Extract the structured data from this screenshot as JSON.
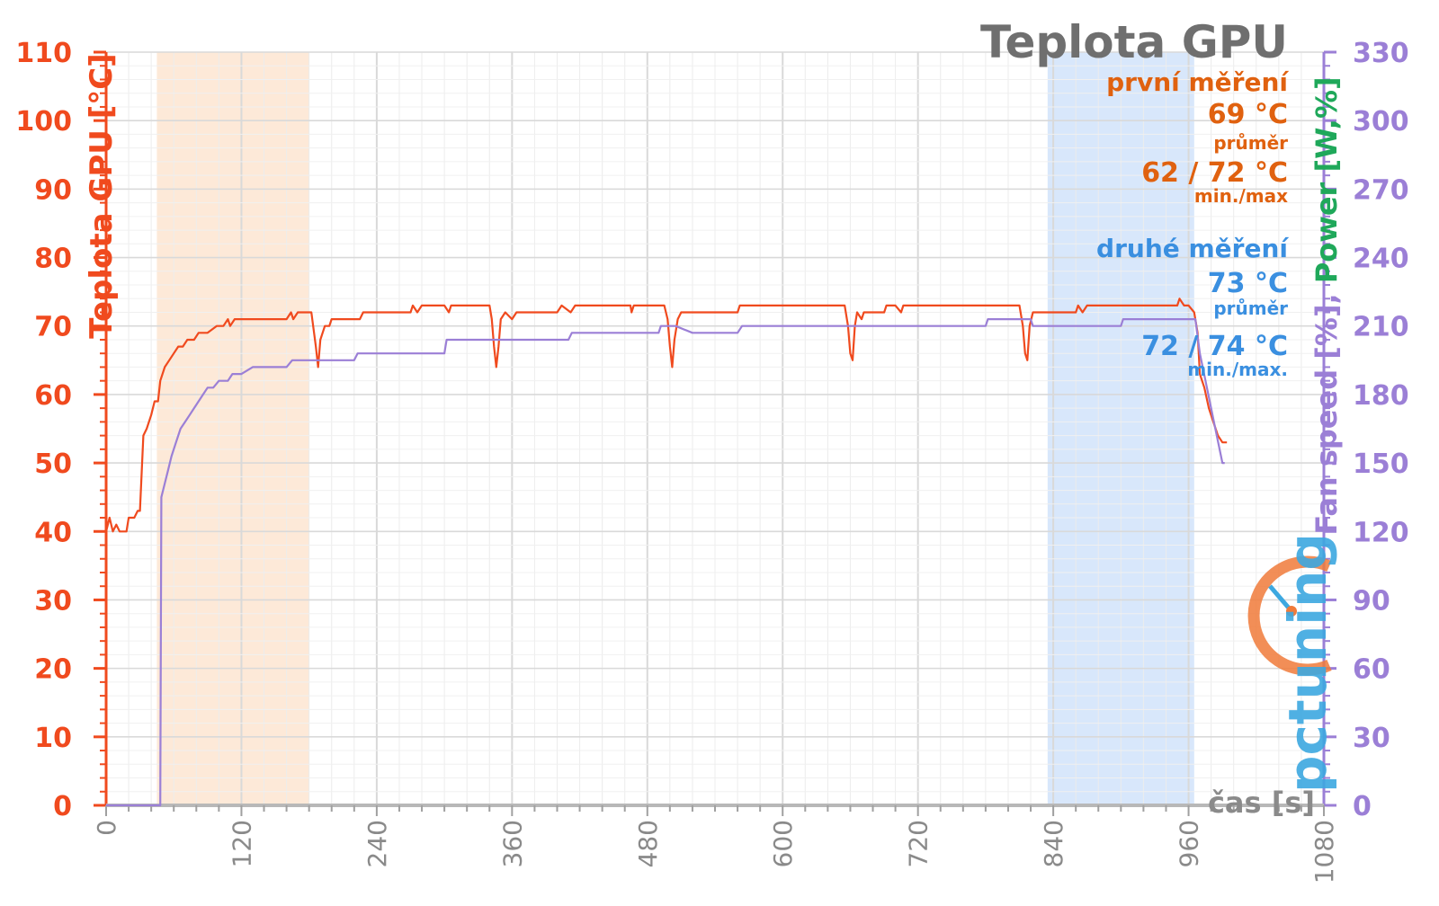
{
  "chart_data": {
    "type": "line",
    "title": "Teplota GPU",
    "xlabel": "čas [s]",
    "ylabel_left": "Teplota GPU [°C]",
    "ylabel_right_parts": [
      {
        "text": "Fan speed [%]",
        "color": "#9b7fd6"
      },
      {
        "text": ", ",
        "color": "#9b7fd6"
      },
      {
        "text": "Power [W,%]",
        "color": "#1fa85a"
      }
    ],
    "xlim": [
      0,
      1080
    ],
    "ylim_left": [
      0,
      110
    ],
    "ylim_right": [
      0,
      330
    ],
    "x_ticks": [
      "0",
      "120",
      "240",
      "360",
      "480",
      "600",
      "720",
      "840",
      "960",
      "1080"
    ],
    "y_ticks_left": [
      "0",
      "10",
      "20",
      "30",
      "40",
      "50",
      "60",
      "70",
      "80",
      "90",
      "100",
      "110"
    ],
    "y_ticks_right": [
      "0",
      "30",
      "60",
      "90",
      "120",
      "150",
      "180",
      "210",
      "240",
      "270",
      "300",
      "330"
    ],
    "grid": true,
    "shaded_regions": [
      {
        "x0": 45,
        "x1": 180,
        "color": "#fde8d6"
      },
      {
        "x0": 835,
        "x1": 965,
        "color": "#d6e6fb"
      }
    ],
    "series": [
      {
        "color": "#f04a1e",
        "axis": "left",
        "points": [
          [
            0,
            40
          ],
          [
            3,
            42
          ],
          [
            6,
            40
          ],
          [
            9,
            41
          ],
          [
            12,
            40
          ],
          [
            18,
            40
          ],
          [
            20,
            42
          ],
          [
            25,
            42
          ],
          [
            28,
            43
          ],
          [
            30,
            43
          ],
          [
            33,
            54
          ],
          [
            36,
            55
          ],
          [
            40,
            57
          ],
          [
            43,
            59
          ],
          [
            46,
            59
          ],
          [
            48,
            62
          ],
          [
            52,
            64
          ],
          [
            56,
            65
          ],
          [
            60,
            66
          ],
          [
            64,
            67
          ],
          [
            68,
            67
          ],
          [
            72,
            68
          ],
          [
            78,
            68
          ],
          [
            82,
            69
          ],
          [
            90,
            69
          ],
          [
            98,
            70
          ],
          [
            104,
            70
          ],
          [
            108,
            71
          ],
          [
            110,
            70
          ],
          [
            114,
            71
          ],
          [
            118,
            71
          ],
          [
            130,
            71
          ],
          [
            160,
            71
          ],
          [
            164,
            72
          ],
          [
            166,
            71
          ],
          [
            170,
            72
          ],
          [
            175,
            72
          ],
          [
            182,
            72
          ],
          [
            186,
            67
          ],
          [
            188,
            64
          ],
          [
            190,
            68
          ],
          [
            194,
            70
          ],
          [
            198,
            70
          ],
          [
            200,
            71
          ],
          [
            205,
            71
          ],
          [
            210,
            71
          ],
          [
            225,
            71
          ],
          [
            228,
            72
          ],
          [
            235,
            72
          ],
          [
            240,
            72
          ],
          [
            270,
            72
          ],
          [
            272,
            73
          ],
          [
            276,
            72
          ],
          [
            280,
            73
          ],
          [
            300,
            73
          ],
          [
            304,
            72
          ],
          [
            306,
            73
          ],
          [
            310,
            73
          ],
          [
            330,
            73
          ],
          [
            340,
            73
          ],
          [
            342,
            71
          ],
          [
            344,
            67
          ],
          [
            346,
            64
          ],
          [
            348,
            67
          ],
          [
            350,
            71
          ],
          [
            354,
            72
          ],
          [
            360,
            71
          ],
          [
            364,
            72
          ],
          [
            380,
            72
          ],
          [
            400,
            72
          ],
          [
            404,
            73
          ],
          [
            412,
            72
          ],
          [
            416,
            73
          ],
          [
            430,
            73
          ],
          [
            450,
            73
          ],
          [
            465,
            73
          ],
          [
            466,
            72
          ],
          [
            468,
            73
          ],
          [
            495,
            73
          ],
          [
            498,
            71
          ],
          [
            500,
            67
          ],
          [
            502,
            64
          ],
          [
            504,
            68
          ],
          [
            507,
            71
          ],
          [
            510,
            72
          ],
          [
            520,
            72
          ],
          [
            540,
            72
          ],
          [
            560,
            72
          ],
          [
            562,
            73
          ],
          [
            575,
            73
          ],
          [
            590,
            73
          ],
          [
            610,
            73
          ],
          [
            655,
            73
          ],
          [
            658,
            70
          ],
          [
            660,
            66
          ],
          [
            662,
            65
          ],
          [
            664,
            70
          ],
          [
            666,
            72
          ],
          [
            670,
            71
          ],
          [
            672,
            72
          ],
          [
            690,
            72
          ],
          [
            692,
            73
          ],
          [
            700,
            73
          ],
          [
            705,
            72
          ],
          [
            707,
            73
          ],
          [
            720,
            73
          ],
          [
            750,
            73
          ],
          [
            770,
            73
          ],
          [
            810,
            73
          ],
          [
            813,
            70
          ],
          [
            815,
            66
          ],
          [
            817,
            65
          ],
          [
            819,
            70
          ],
          [
            822,
            72
          ],
          [
            826,
            72
          ],
          [
            840,
            72
          ],
          [
            860,
            72
          ],
          [
            862,
            73
          ],
          [
            866,
            72
          ],
          [
            870,
            73
          ],
          [
            880,
            73
          ],
          [
            900,
            73
          ],
          [
            940,
            73
          ],
          [
            950,
            73
          ],
          [
            952,
            74
          ],
          [
            956,
            73
          ],
          [
            960,
            73
          ],
          [
            965,
            72
          ],
          [
            968,
            69
          ],
          [
            970,
            63
          ],
          [
            974,
            61
          ],
          [
            978,
            58
          ],
          [
            982,
            56
          ],
          [
            986,
            54
          ],
          [
            990,
            53
          ],
          [
            994,
            53
          ]
        ]
      },
      {
        "color": "#9b7fd6",
        "axis": "left",
        "points": [
          [
            0,
            0
          ],
          [
            48,
            0
          ],
          [
            49,
            45
          ],
          [
            52,
            47
          ],
          [
            55,
            49
          ],
          [
            58,
            51
          ],
          [
            62,
            53
          ],
          [
            66,
            55
          ],
          [
            70,
            56
          ],
          [
            74,
            57
          ],
          [
            78,
            58
          ],
          [
            82,
            59
          ],
          [
            86,
            60
          ],
          [
            90,
            61
          ],
          [
            95,
            61
          ],
          [
            100,
            62
          ],
          [
            108,
            62
          ],
          [
            112,
            63
          ],
          [
            120,
            63
          ],
          [
            130,
            64
          ],
          [
            160,
            64
          ],
          [
            165,
            65
          ],
          [
            180,
            65
          ],
          [
            190,
            65
          ],
          [
            220,
            65
          ],
          [
            223,
            66
          ],
          [
            240,
            66
          ],
          [
            300,
            66
          ],
          [
            302,
            68
          ],
          [
            340,
            68
          ],
          [
            345,
            68
          ],
          [
            360,
            68
          ],
          [
            410,
            68
          ],
          [
            413,
            69
          ],
          [
            470,
            69
          ],
          [
            490,
            69
          ],
          [
            492,
            70
          ],
          [
            505,
            70
          ],
          [
            520,
            69
          ],
          [
            560,
            69
          ],
          [
            564,
            70
          ],
          [
            600,
            70
          ],
          [
            650,
            70
          ],
          [
            720,
            70
          ],
          [
            780,
            70
          ],
          [
            782,
            71
          ],
          [
            820,
            71
          ],
          [
            822,
            70
          ],
          [
            850,
            70
          ],
          [
            900,
            70
          ],
          [
            902,
            71
          ],
          [
            960,
            71
          ],
          [
            966,
            71
          ],
          [
            970,
            66
          ],
          [
            975,
            62
          ],
          [
            980,
            58
          ],
          [
            985,
            54
          ],
          [
            990,
            50
          ],
          [
            992,
            50
          ]
        ]
      }
    ],
    "annotations": {
      "first_header": "první měření",
      "first_avg": "69 °C",
      "first_avg_label": "průměr",
      "first_minmax": "62 / 72 °C",
      "first_minmax_label": "min./max",
      "second_header": "druhé měření",
      "second_avg": "73 °C",
      "second_avg_label": "průměr",
      "second_minmax": "72 / 74 °C",
      "second_minmax_label": "min./max.",
      "first_color": "#e0610f",
      "second_color": "#3a8fe0"
    },
    "watermark": "pctuning"
  }
}
